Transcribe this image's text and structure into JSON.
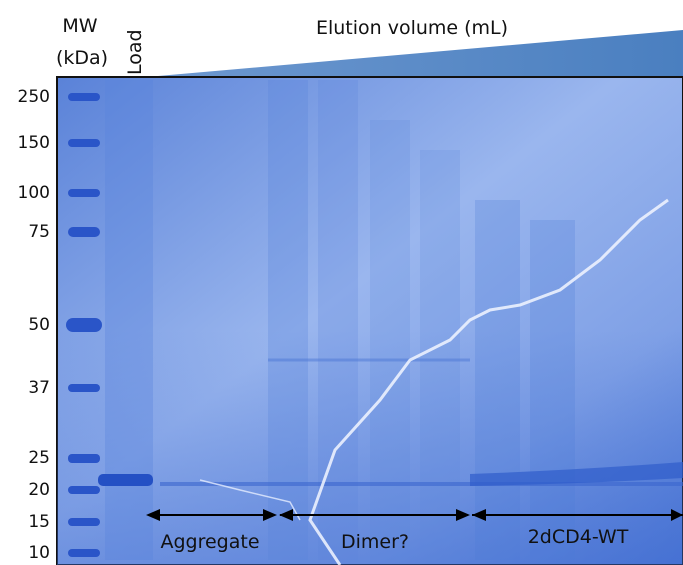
{
  "header": {
    "mw_label": "MW",
    "mw_unit": "(kDa)",
    "load_label": "Load",
    "title": "Elution volume (mL)"
  },
  "mw_markers": [
    250,
    150,
    100,
    75,
    50,
    37,
    25,
    20,
    15,
    10
  ],
  "ranges": [
    "Aggregate",
    "Dimer?",
    "2dCD4-WT"
  ]
}
